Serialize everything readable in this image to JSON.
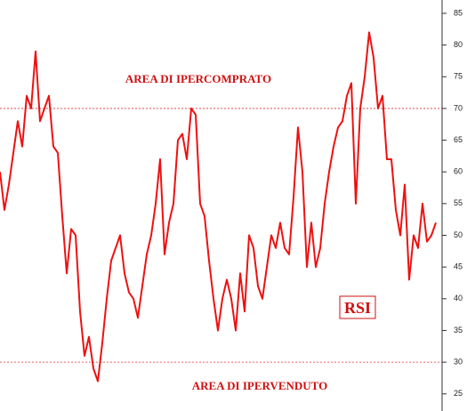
{
  "chart_data": {
    "type": "line",
    "values": [
      60,
      54,
      58,
      63,
      68,
      64,
      72,
      70,
      79,
      68,
      70,
      72,
      64,
      63,
      53,
      44,
      51,
      50,
      38,
      31,
      34,
      29,
      27,
      33,
      40,
      46,
      48,
      50,
      44,
      41,
      40,
      37,
      42,
      47,
      50,
      55,
      62,
      47,
      52,
      55,
      65,
      66,
      62,
      70,
      69,
      55,
      53,
      46,
      40,
      35,
      40,
      43,
      40,
      35,
      44,
      38,
      50,
      48,
      42,
      40,
      45,
      50,
      48,
      52,
      48,
      47,
      56,
      67,
      60,
      45,
      52,
      45,
      48,
      55,
      60,
      64,
      67,
      68,
      72,
      74,
      55,
      70,
      75,
      82,
      78,
      70,
      72,
      62,
      62,
      54,
      50,
      58,
      43,
      50,
      48,
      55,
      49,
      50,
      52
    ],
    "color": "#ee1111",
    "ylim": [
      22.3,
      87.1
    ],
    "yticks": [
      25,
      30,
      35,
      40,
      45,
      50,
      55,
      60,
      65,
      70,
      75,
      80,
      85
    ],
    "reference_lines": [
      70,
      30
    ],
    "annotations": [
      "AREA DI IPERCOMPRATO",
      "AREA DI IPERVENDUTO",
      "RSI"
    ]
  }
}
